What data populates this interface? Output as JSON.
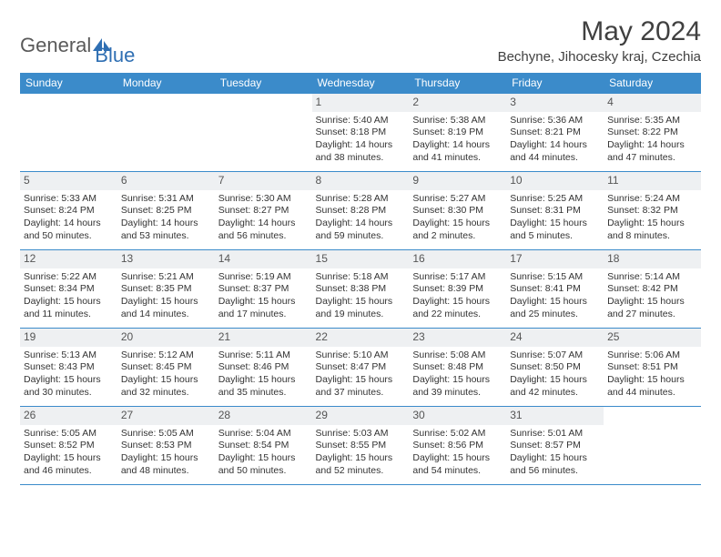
{
  "logo": {
    "part1": "General",
    "part2": "Blue"
  },
  "title": "May 2024",
  "location": "Bechyne, Jihocesky kraj, Czechia",
  "colors": {
    "header_bg": "#3b8bca",
    "header_text": "#ffffff",
    "daynum_bg": "#eef0f2",
    "border": "#3b8bca",
    "logo_gray": "#5a5a5a",
    "logo_blue": "#2f6fb3"
  },
  "weekdays": [
    "Sunday",
    "Monday",
    "Tuesday",
    "Wednesday",
    "Thursday",
    "Friday",
    "Saturday"
  ],
  "weeks": [
    [
      {
        "day": "",
        "lines": []
      },
      {
        "day": "",
        "lines": []
      },
      {
        "day": "",
        "lines": []
      },
      {
        "day": "1",
        "lines": [
          "Sunrise: 5:40 AM",
          "Sunset: 8:18 PM",
          "Daylight: 14 hours",
          "and 38 minutes."
        ]
      },
      {
        "day": "2",
        "lines": [
          "Sunrise: 5:38 AM",
          "Sunset: 8:19 PM",
          "Daylight: 14 hours",
          "and 41 minutes."
        ]
      },
      {
        "day": "3",
        "lines": [
          "Sunrise: 5:36 AM",
          "Sunset: 8:21 PM",
          "Daylight: 14 hours",
          "and 44 minutes."
        ]
      },
      {
        "day": "4",
        "lines": [
          "Sunrise: 5:35 AM",
          "Sunset: 8:22 PM",
          "Daylight: 14 hours",
          "and 47 minutes."
        ]
      }
    ],
    [
      {
        "day": "5",
        "lines": [
          "Sunrise: 5:33 AM",
          "Sunset: 8:24 PM",
          "Daylight: 14 hours",
          "and 50 minutes."
        ]
      },
      {
        "day": "6",
        "lines": [
          "Sunrise: 5:31 AM",
          "Sunset: 8:25 PM",
          "Daylight: 14 hours",
          "and 53 minutes."
        ]
      },
      {
        "day": "7",
        "lines": [
          "Sunrise: 5:30 AM",
          "Sunset: 8:27 PM",
          "Daylight: 14 hours",
          "and 56 minutes."
        ]
      },
      {
        "day": "8",
        "lines": [
          "Sunrise: 5:28 AM",
          "Sunset: 8:28 PM",
          "Daylight: 14 hours",
          "and 59 minutes."
        ]
      },
      {
        "day": "9",
        "lines": [
          "Sunrise: 5:27 AM",
          "Sunset: 8:30 PM",
          "Daylight: 15 hours",
          "and 2 minutes."
        ]
      },
      {
        "day": "10",
        "lines": [
          "Sunrise: 5:25 AM",
          "Sunset: 8:31 PM",
          "Daylight: 15 hours",
          "and 5 minutes."
        ]
      },
      {
        "day": "11",
        "lines": [
          "Sunrise: 5:24 AM",
          "Sunset: 8:32 PM",
          "Daylight: 15 hours",
          "and 8 minutes."
        ]
      }
    ],
    [
      {
        "day": "12",
        "lines": [
          "Sunrise: 5:22 AM",
          "Sunset: 8:34 PM",
          "Daylight: 15 hours",
          "and 11 minutes."
        ]
      },
      {
        "day": "13",
        "lines": [
          "Sunrise: 5:21 AM",
          "Sunset: 8:35 PM",
          "Daylight: 15 hours",
          "and 14 minutes."
        ]
      },
      {
        "day": "14",
        "lines": [
          "Sunrise: 5:19 AM",
          "Sunset: 8:37 PM",
          "Daylight: 15 hours",
          "and 17 minutes."
        ]
      },
      {
        "day": "15",
        "lines": [
          "Sunrise: 5:18 AM",
          "Sunset: 8:38 PM",
          "Daylight: 15 hours",
          "and 19 minutes."
        ]
      },
      {
        "day": "16",
        "lines": [
          "Sunrise: 5:17 AM",
          "Sunset: 8:39 PM",
          "Daylight: 15 hours",
          "and 22 minutes."
        ]
      },
      {
        "day": "17",
        "lines": [
          "Sunrise: 5:15 AM",
          "Sunset: 8:41 PM",
          "Daylight: 15 hours",
          "and 25 minutes."
        ]
      },
      {
        "day": "18",
        "lines": [
          "Sunrise: 5:14 AM",
          "Sunset: 8:42 PM",
          "Daylight: 15 hours",
          "and 27 minutes."
        ]
      }
    ],
    [
      {
        "day": "19",
        "lines": [
          "Sunrise: 5:13 AM",
          "Sunset: 8:43 PM",
          "Daylight: 15 hours",
          "and 30 minutes."
        ]
      },
      {
        "day": "20",
        "lines": [
          "Sunrise: 5:12 AM",
          "Sunset: 8:45 PM",
          "Daylight: 15 hours",
          "and 32 minutes."
        ]
      },
      {
        "day": "21",
        "lines": [
          "Sunrise: 5:11 AM",
          "Sunset: 8:46 PM",
          "Daylight: 15 hours",
          "and 35 minutes."
        ]
      },
      {
        "day": "22",
        "lines": [
          "Sunrise: 5:10 AM",
          "Sunset: 8:47 PM",
          "Daylight: 15 hours",
          "and 37 minutes."
        ]
      },
      {
        "day": "23",
        "lines": [
          "Sunrise: 5:08 AM",
          "Sunset: 8:48 PM",
          "Daylight: 15 hours",
          "and 39 minutes."
        ]
      },
      {
        "day": "24",
        "lines": [
          "Sunrise: 5:07 AM",
          "Sunset: 8:50 PM",
          "Daylight: 15 hours",
          "and 42 minutes."
        ]
      },
      {
        "day": "25",
        "lines": [
          "Sunrise: 5:06 AM",
          "Sunset: 8:51 PM",
          "Daylight: 15 hours",
          "and 44 minutes."
        ]
      }
    ],
    [
      {
        "day": "26",
        "lines": [
          "Sunrise: 5:05 AM",
          "Sunset: 8:52 PM",
          "Daylight: 15 hours",
          "and 46 minutes."
        ]
      },
      {
        "day": "27",
        "lines": [
          "Sunrise: 5:05 AM",
          "Sunset: 8:53 PM",
          "Daylight: 15 hours",
          "and 48 minutes."
        ]
      },
      {
        "day": "28",
        "lines": [
          "Sunrise: 5:04 AM",
          "Sunset: 8:54 PM",
          "Daylight: 15 hours",
          "and 50 minutes."
        ]
      },
      {
        "day": "29",
        "lines": [
          "Sunrise: 5:03 AM",
          "Sunset: 8:55 PM",
          "Daylight: 15 hours",
          "and 52 minutes."
        ]
      },
      {
        "day": "30",
        "lines": [
          "Sunrise: 5:02 AM",
          "Sunset: 8:56 PM",
          "Daylight: 15 hours",
          "and 54 minutes."
        ]
      },
      {
        "day": "31",
        "lines": [
          "Sunrise: 5:01 AM",
          "Sunset: 8:57 PM",
          "Daylight: 15 hours",
          "and 56 minutes."
        ]
      },
      {
        "day": "",
        "lines": []
      }
    ]
  ]
}
